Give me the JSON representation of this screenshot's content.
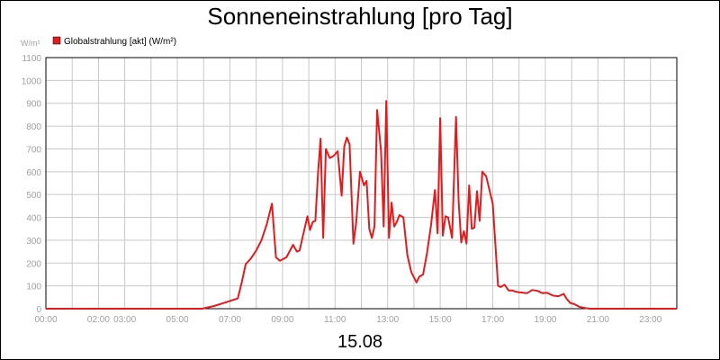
{
  "chart_data": {
    "type": "line",
    "title": "Sonneneinstrahlung [pro Tag]",
    "date_label": "15.08",
    "ylabel_unit": "W/m²",
    "ylim": [
      0,
      1100
    ],
    "y_ticks": [
      0,
      100,
      200,
      300,
      400,
      500,
      600,
      700,
      800,
      900,
      1000,
      1100
    ],
    "xlim": [
      0,
      24
    ],
    "x_tick_labels": [
      {
        "x": 0,
        "label": "00:00"
      },
      {
        "x": 2,
        "label": "02:00"
      },
      {
        "x": 3,
        "label": "03:00"
      },
      {
        "x": 5,
        "label": "05:00"
      },
      {
        "x": 7,
        "label": "07:00"
      },
      {
        "x": 9,
        "label": "09:00"
      },
      {
        "x": 11,
        "label": "11:00"
      },
      {
        "x": 13,
        "label": "13:00"
      },
      {
        "x": 15,
        "label": "15:00"
      },
      {
        "x": 17,
        "label": "17:00"
      },
      {
        "x": 19,
        "label": "19:00"
      },
      {
        "x": 21,
        "label": "21:00"
      },
      {
        "x": 23,
        "label": "23:00"
      }
    ],
    "grid": true,
    "legend_position": "top-left",
    "series": [
      {
        "name": "Globalstrahlung [akt] (W/m²)",
        "color": "#e41a1c",
        "x": [
          0,
          5.95,
          6.4,
          6.9,
          7.3,
          7.45,
          7.6,
          7.8,
          8.0,
          8.2,
          8.4,
          8.6,
          8.75,
          8.9,
          9.15,
          9.4,
          9.55,
          9.65,
          9.8,
          9.95,
          10.05,
          10.15,
          10.25,
          10.35,
          10.45,
          10.55,
          10.65,
          10.8,
          10.95,
          11.1,
          11.25,
          11.35,
          11.45,
          11.55,
          11.7,
          11.8,
          11.95,
          12.1,
          12.2,
          12.3,
          12.4,
          12.5,
          12.6,
          12.75,
          12.85,
          12.95,
          13.05,
          13.15,
          13.25,
          13.35,
          13.45,
          13.6,
          13.75,
          13.9,
          14.1,
          14.2,
          14.35,
          14.5,
          14.65,
          14.8,
          14.9,
          15.0,
          15.1,
          15.2,
          15.3,
          15.45,
          15.6,
          15.7,
          15.8,
          15.9,
          16.0,
          16.1,
          16.2,
          16.3,
          16.4,
          16.5,
          16.6,
          16.75,
          17.0,
          17.2,
          17.3,
          17.45,
          17.6,
          17.75,
          17.85,
          18.0,
          18.3,
          18.5,
          18.7,
          18.9,
          19.05,
          19.3,
          19.5,
          19.7,
          19.8,
          19.95,
          20.1,
          20.3,
          20.5,
          20.7,
          21.0,
          24
        ],
        "values": [
          0,
          0,
          12,
          30,
          45,
          115,
          195,
          220,
          255,
          300,
          370,
          460,
          225,
          210,
          225,
          280,
          250,
          255,
          330,
          405,
          345,
          380,
          385,
          590,
          745,
          310,
          700,
          660,
          670,
          690,
          495,
          710,
          750,
          720,
          285,
          375,
          600,
          540,
          560,
          350,
          310,
          360,
          870,
          690,
          360,
          910,
          310,
          465,
          360,
          380,
          410,
          400,
          235,
          160,
          115,
          140,
          150,
          245,
          365,
          520,
          330,
          835,
          320,
          405,
          400,
          310,
          840,
          470,
          290,
          340,
          285,
          540,
          350,
          355,
          515,
          385,
          600,
          580,
          460,
          100,
          95,
          105,
          80,
          80,
          75,
          72,
          68,
          82,
          78,
          68,
          70,
          57,
          55,
          65,
          45,
          25,
          20,
          8,
          3,
          0,
          0,
          0
        ]
      }
    ]
  }
}
